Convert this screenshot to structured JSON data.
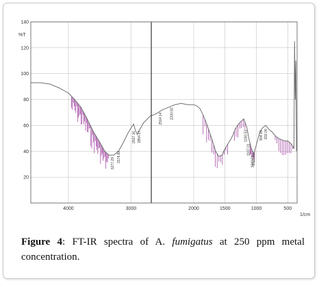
{
  "caption": {
    "label": "Figure 4",
    "sep": ": ",
    "text_before": "FT-IR spectra of A. ",
    "species": "fumigatus",
    "text_after": " at 250 ppm metal concentration."
  },
  "chart_data": {
    "type": "line",
    "ylabel": "%T",
    "xlabel": "1/cm",
    "xlim": [
      4600,
      350
    ],
    "ylim": [
      0,
      140
    ],
    "x_ticks": [
      4000,
      3000,
      2000,
      1500,
      1000,
      500
    ],
    "y_ticks": [
      20,
      40,
      60,
      80,
      100,
      120,
      140
    ],
    "grid": true,
    "colors": {
      "spectrum": "#6e6e6e",
      "noise": "#a64ca6",
      "cursor": "#333333",
      "grid": "#b8b8b8"
    },
    "series": [
      {
        "x": [
          4600,
          4450,
          4300,
          4150,
          4000,
          3900,
          3800,
          3700,
          3600,
          3500,
          3420,
          3350,
          3277,
          3200,
          3120,
          3050,
          3000,
          2960,
          2930,
          2900,
          2860,
          2800,
          2700,
          2600,
          2500,
          2400,
          2300,
          2200,
          2100,
          2000,
          1950,
          1900,
          1850,
          1800,
          1750,
          1700,
          1650,
          1600,
          1550,
          1500,
          1450,
          1400,
          1370,
          1340,
          1300,
          1250,
          1200,
          1150,
          1120,
          1080,
          1040,
          1000,
          950,
          904,
          850,
          800,
          750,
          700,
          650,
          600,
          550,
          500,
          450,
          420,
          400,
          390,
          380,
          370,
          360
        ],
        "y": [
          93,
          93,
          92,
          89,
          85,
          80,
          74,
          65,
          55,
          47,
          40,
          37,
          37,
          40,
          47,
          54,
          58,
          61,
          56,
          53,
          57,
          62,
          67,
          69,
          72,
          74,
          76,
          77,
          76,
          76,
          75,
          73,
          68,
          62,
          55,
          48,
          40,
          36,
          37,
          42,
          46,
          50,
          53,
          57,
          60,
          63,
          65,
          58,
          50,
          42,
          38,
          45,
          54,
          58,
          60,
          57,
          55,
          52,
          50,
          49,
          48,
          48,
          46,
          44,
          42,
          125,
          80,
          110,
          40
        ]
      }
    ],
    "peak_labels": [
      "3277.29",
      "3178.82",
      "2937.16",
      "2854.17",
      "2330.92",
      "2514.14",
      "1107.01",
      "1150.53",
      "1043.91",
      "1029.31",
      "904.99",
      "832.00"
    ]
  }
}
